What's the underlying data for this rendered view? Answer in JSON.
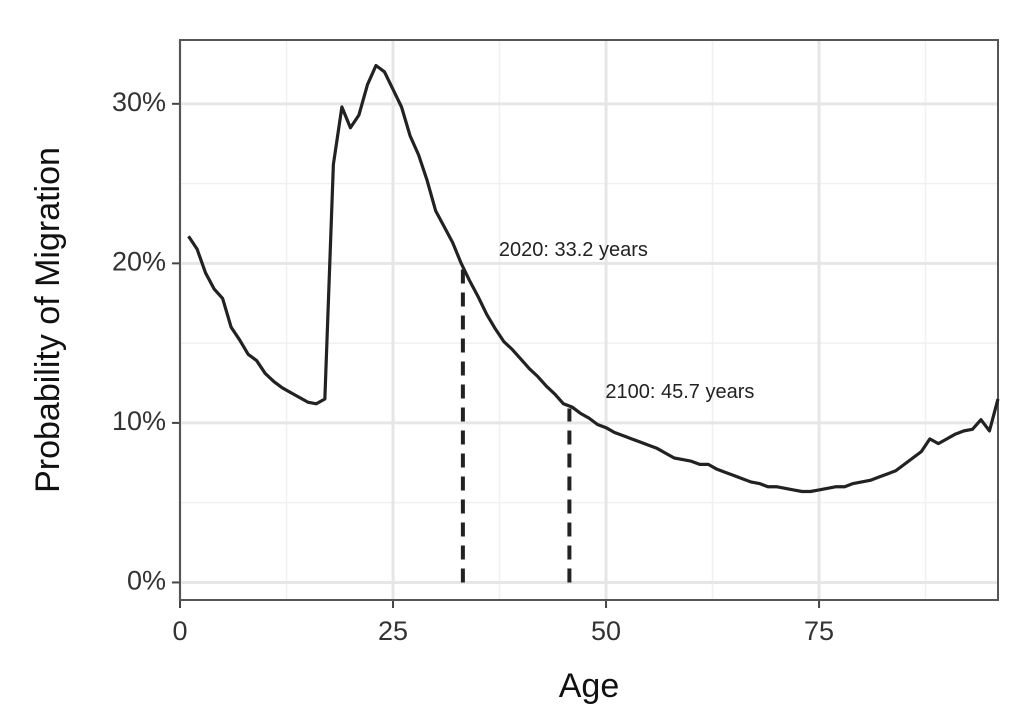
{
  "chart_data": {
    "type": "line",
    "xlabel": "Age",
    "ylabel": "Probability of Migration",
    "x": [
      1,
      2,
      3,
      4,
      5,
      6,
      7,
      8,
      9,
      10,
      11,
      12,
      13,
      14,
      15,
      16,
      17,
      18,
      19,
      20,
      21,
      22,
      23,
      24,
      25,
      26,
      27,
      28,
      29,
      30,
      31,
      32,
      33,
      34,
      35,
      36,
      37,
      38,
      39,
      40,
      41,
      42,
      43,
      44,
      45,
      46,
      47,
      48,
      49,
      50,
      51,
      52,
      53,
      54,
      55,
      56,
      57,
      58,
      59,
      60,
      61,
      62,
      63,
      64,
      65,
      66,
      67,
      68,
      69,
      70,
      71,
      72,
      73,
      74,
      75,
      76,
      77,
      78,
      79,
      80,
      81,
      82,
      83,
      84,
      85,
      86,
      87,
      88,
      89,
      90,
      91,
      92,
      93,
      94,
      95,
      96
    ],
    "series": [
      {
        "name": "Probability of Migration",
        "color": "#222222",
        "values": [
          21.7,
          20.9,
          19.4,
          18.4,
          17.8,
          16.0,
          15.2,
          14.3,
          13.9,
          13.1,
          12.6,
          12.2,
          11.9,
          11.6,
          11.3,
          11.2,
          11.5,
          26.2,
          29.8,
          28.5,
          29.3,
          31.2,
          32.4,
          32.0,
          30.9,
          29.8,
          28.0,
          26.8,
          25.2,
          23.3,
          22.3,
          21.3,
          20.0,
          18.9,
          17.9,
          16.8,
          15.9,
          15.1,
          14.6,
          14.0,
          13.4,
          12.9,
          12.3,
          11.8,
          11.2,
          11.0,
          10.6,
          10.3,
          9.9,
          9.7,
          9.4,
          9.2,
          9.0,
          8.8,
          8.6,
          8.4,
          8.1,
          7.8,
          7.7,
          7.6,
          7.4,
          7.4,
          7.1,
          6.9,
          6.7,
          6.5,
          6.3,
          6.2,
          6.0,
          6.0,
          5.9,
          5.8,
          5.7,
          5.7,
          5.8,
          5.9,
          6.0,
          6.0,
          6.2,
          6.3,
          6.4,
          6.6,
          6.8,
          7.0,
          7.4,
          7.8,
          8.2,
          9.0,
          8.7,
          9.0,
          9.3,
          9.5,
          9.6,
          10.2,
          9.5,
          11.5
        ]
      }
    ],
    "xlim": [
      0,
      96
    ],
    "ylim": [
      -1.1,
      34
    ],
    "xticks": [
      0,
      25,
      50,
      75
    ],
    "yticks": [
      {
        "value": 0,
        "label": "0%"
      },
      {
        "value": 10,
        "label": "10%"
      },
      {
        "value": 20,
        "label": "20%"
      },
      {
        "value": 30,
        "label": "30%"
      }
    ],
    "xminorticks": [
      12.5,
      37.5,
      62.5,
      87.5
    ],
    "yminorticks": [
      5,
      15,
      25
    ],
    "grid": true,
    "annotations": [
      {
        "text": "2020: 33.2 years",
        "x": 33.2,
        "y": 19.8
      },
      {
        "text": "2100: 45.7 years",
        "x": 45.7,
        "y": 10.9
      }
    ]
  }
}
